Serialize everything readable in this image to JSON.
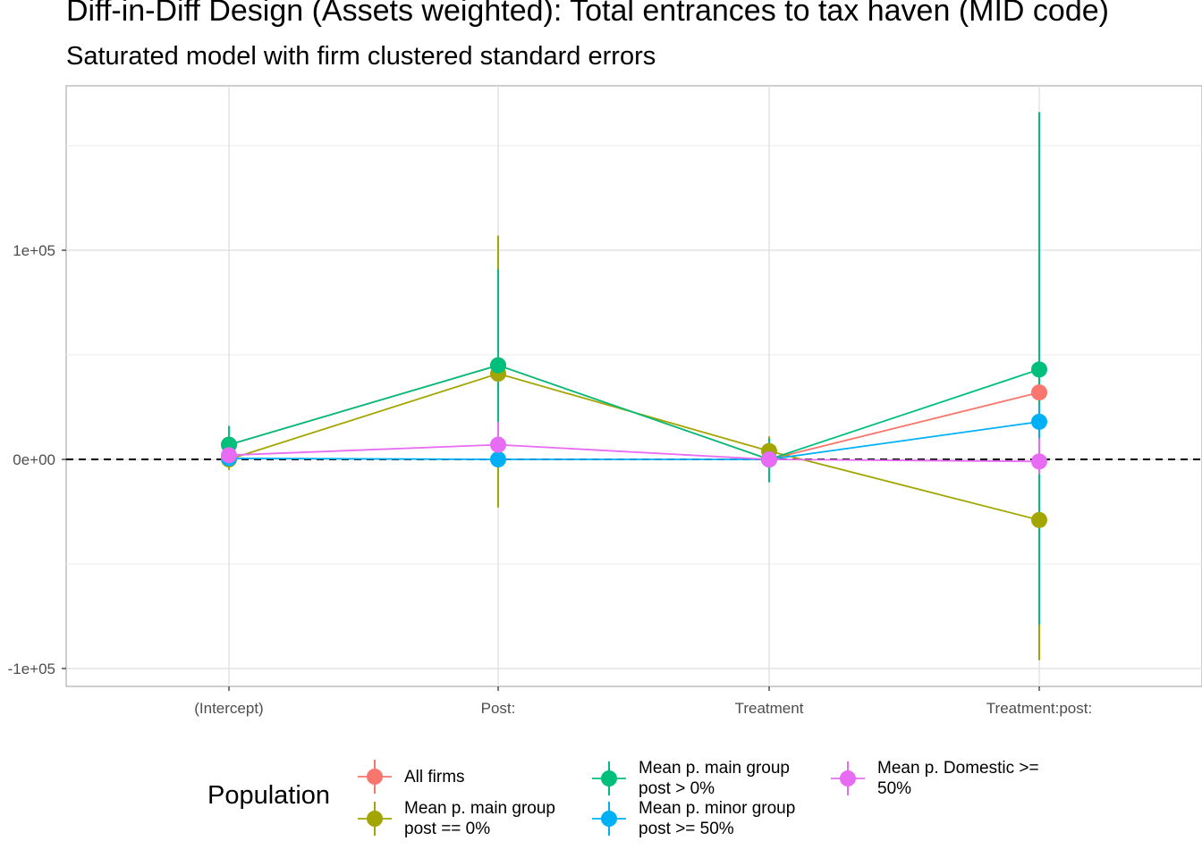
{
  "chart_data": {
    "type": "scatter",
    "title": "Diff-in-Diff Design (Assets weighted): Total entrances to tax haven (MID code)",
    "subtitle": "Saturated model with firm clustered standard errors",
    "categories": [
      "(Intercept)",
      "Post:",
      "Treatment",
      "Treatment:post:"
    ],
    "y_ticks": [
      {
        "value": 100000,
        "label": "1e+05"
      },
      {
        "value": 0,
        "label": "0e+00"
      },
      {
        "value": -100000,
        "label": "-1e+05"
      }
    ],
    "ylim": [
      -108000,
      179000
    ],
    "grid": true,
    "reference_line": {
      "y": 0,
      "style": "dashed"
    },
    "legend": {
      "title": "Population",
      "position": "bottom"
    },
    "series": [
      {
        "name": "All firms",
        "color": "#F8766D",
        "values": [
          7000,
          45000,
          0,
          32000
        ],
        "lower": [
          -2000,
          0,
          -10000,
          22000
        ],
        "upper": [
          16000,
          90000,
          10000,
          42000
        ]
      },
      {
        "name": "Mean p. main group\npost == 0%",
        "color": "#A3A500",
        "values": [
          0,
          41000,
          4000,
          -29000
        ],
        "lower": [
          -5000,
          -23000,
          -4000,
          -96000
        ],
        "upper": [
          5000,
          107000,
          11000,
          38000
        ]
      },
      {
        "name": "Mean p. main group\npost > 0%",
        "color": "#00BF7D",
        "values": [
          7000,
          45000,
          0,
          43000
        ],
        "lower": [
          -2000,
          0,
          -11000,
          -79000
        ],
        "upper": [
          16000,
          91000,
          10000,
          166000
        ]
      },
      {
        "name": "Mean p. minor group\npost >= 50%",
        "color": "#00B0F6",
        "values": [
          500,
          0,
          0,
          18000
        ],
        "lower": [
          -1000,
          -1000,
          -1000,
          10000
        ],
        "upper": [
          2000,
          1000,
          1000,
          26000
        ]
      },
      {
        "name": "Mean p. Domestic >=\n50%",
        "color": "#E76BF3",
        "values": [
          2000,
          7000,
          0,
          -1000
        ],
        "lower": [
          -1000,
          -3000,
          -2000,
          -7000
        ],
        "upper": [
          5000,
          18000,
          2000,
          10000
        ]
      }
    ]
  }
}
